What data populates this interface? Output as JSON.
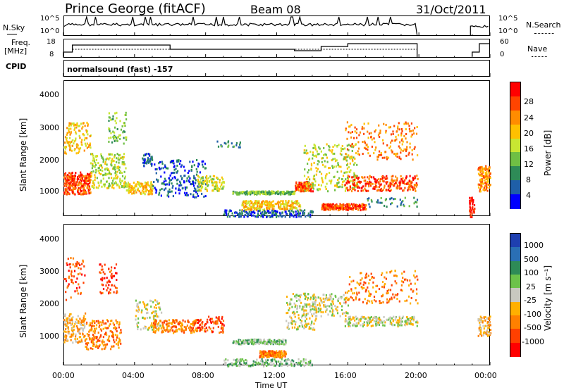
{
  "header": {
    "station": "Prince George (fitACF)",
    "beam": "Beam 08",
    "date": "31/Oct/2011"
  },
  "sidepanel": {
    "nsky_label": "N.Sky",
    "nsky_ticks": [
      "10^5",
      "10^0"
    ],
    "nsearch_label": "N.Search",
    "nsearch_ticks": [
      "10^5",
      "10^0"
    ],
    "freq_label": "Freq.",
    "freq_unit": "[MHz]",
    "freq_ticks": [
      "18",
      "8"
    ],
    "nave_label": "Nave",
    "nave_ticks": [
      "60",
      "0"
    ],
    "cpid_label": "CPID",
    "cpid_value": "normalsound (fast) -157"
  },
  "chart_data": [
    {
      "type": "heatmap",
      "name": "power-panel",
      "ylabel": "Slant Range [km]",
      "yticks": [
        "4000",
        "3000",
        "2000",
        "1000"
      ],
      "ylim": [
        180,
        4500
      ],
      "colorbar": {
        "title": "Power [dB]",
        "ticks": [
          "28",
          "24",
          "20",
          "16",
          "12",
          "8",
          "4"
        ],
        "colors": [
          "#ff0000",
          "#ff4400",
          "#ff8c00",
          "#ffc000",
          "#c8e632",
          "#6fbf44",
          "#2e8b57",
          "#1f5fa8",
          "#0000ff"
        ]
      }
    },
    {
      "type": "heatmap",
      "name": "velocity-panel",
      "ylabel": "Slant Range [km]",
      "yticks": [
        "4000",
        "3000",
        "2000",
        "1000"
      ],
      "ylim": [
        180,
        4500
      ],
      "xlabel": "Time UT",
      "xticks": [
        "00:00",
        "04:00",
        "08:00",
        "12:00",
        "16:00",
        "20:00",
        "00:00"
      ],
      "colorbar": {
        "title": "Velocity [m s⁻¹]",
        "ticks": [
          "1000",
          "500",
          "100",
          "25",
          "-25",
          "-100",
          "-500",
          "-1000"
        ],
        "colors": [
          "#1e3fb0",
          "#2a6fb5",
          "#2e8b57",
          "#6cc24a",
          "#c8c8c0",
          "#ffb000",
          "#ff8000",
          "#ff4000",
          "#ff0000"
        ]
      }
    }
  ]
}
